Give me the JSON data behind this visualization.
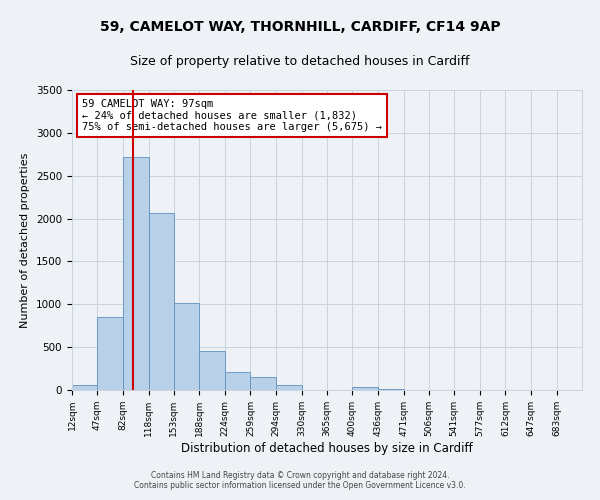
{
  "title": "59, CAMELOT WAY, THORNHILL, CARDIFF, CF14 9AP",
  "subtitle": "Size of property relative to detached houses in Cardiff",
  "xlabel": "Distribution of detached houses by size in Cardiff",
  "ylabel": "Number of detached properties",
  "bar_edges": [
    12,
    47,
    82,
    118,
    153,
    188,
    224,
    259,
    294,
    330,
    365,
    400,
    436,
    471,
    506,
    541,
    577,
    612,
    647,
    683,
    718
  ],
  "bar_heights": [
    55,
    855,
    2720,
    2060,
    1010,
    455,
    215,
    150,
    60,
    0,
    0,
    40,
    10,
    0,
    5,
    0,
    0,
    0,
    0,
    0
  ],
  "bar_color": "#b8d0e8",
  "bar_edgecolor": "#6090c0",
  "property_line_x": 97,
  "property_line_color": "#cc0000",
  "ylim": [
    0,
    3500
  ],
  "yticks": [
    0,
    500,
    1000,
    1500,
    2000,
    2500,
    3000,
    3500
  ],
  "annotation_box_text": "59 CAMELOT WAY: 97sqm\n← 24% of detached houses are smaller (1,832)\n75% of semi-detached houses are larger (5,675) →",
  "annotation_box_color": "#cc0000",
  "footer_line1": "Contains HM Land Registry data © Crown copyright and database right 2024.",
  "footer_line2": "Contains public sector information licensed under the Open Government Licence v3.0.",
  "bg_color": "#eef2f7",
  "grid_color": "#c8d4e0",
  "title_fontsize": 10,
  "subtitle_fontsize": 9,
  "tick_label_fontsize": 6.5,
  "xlabel_fontsize": 8.5,
  "ylabel_fontsize": 8,
  "annot_fontsize": 7.5
}
